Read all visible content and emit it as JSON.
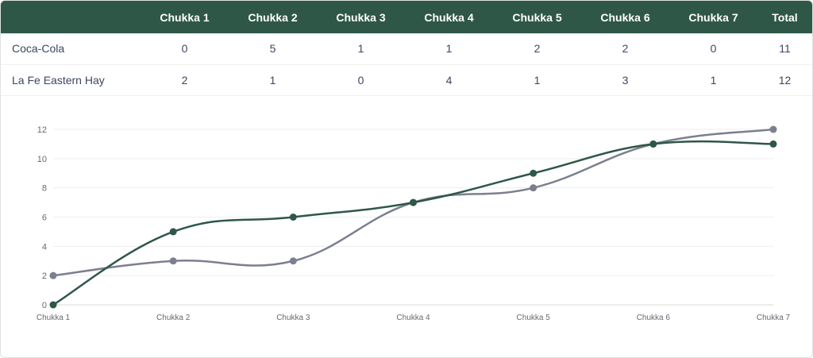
{
  "table": {
    "columns": [
      "",
      "Chukka 1",
      "Chukka 2",
      "Chukka 3",
      "Chukka 4",
      "Chukka 5",
      "Chukka 6",
      "Chukka 7",
      "Total"
    ],
    "rows": [
      {
        "team": "Coca-Cola",
        "scores": [
          "0",
          "5",
          "1",
          "1",
          "2",
          "2",
          "0"
        ],
        "total": "11"
      },
      {
        "team": "La Fe Eastern Hay",
        "scores": [
          "2",
          "1",
          "0",
          "4",
          "1",
          "3",
          "1"
        ],
        "total": "12"
      }
    ]
  },
  "chart_data": {
    "type": "line",
    "categories": [
      "Chukka 1",
      "Chukka 2",
      "Chukka 3",
      "Chukka 4",
      "Chukka 5",
      "Chukka 6",
      "Chukka 7"
    ],
    "series": [
      {
        "values": [
          2,
          3,
          3,
          7,
          8,
          11,
          12
        ],
        "color": "#7b7f8e"
      },
      {
        "values": [
          0,
          5,
          6,
          7,
          9,
          11,
          11
        ],
        "color": "#2f5748"
      }
    ],
    "ylim": [
      0,
      12
    ],
    "yticks": [
      0,
      2,
      4,
      6,
      8,
      10,
      12
    ],
    "grid": true,
    "title": "",
    "xlabel": "",
    "ylabel": ""
  },
  "colors": {
    "header_bg": "#2f5748",
    "header_text": "#ffffff",
    "body_text": "#3d4660"
  }
}
